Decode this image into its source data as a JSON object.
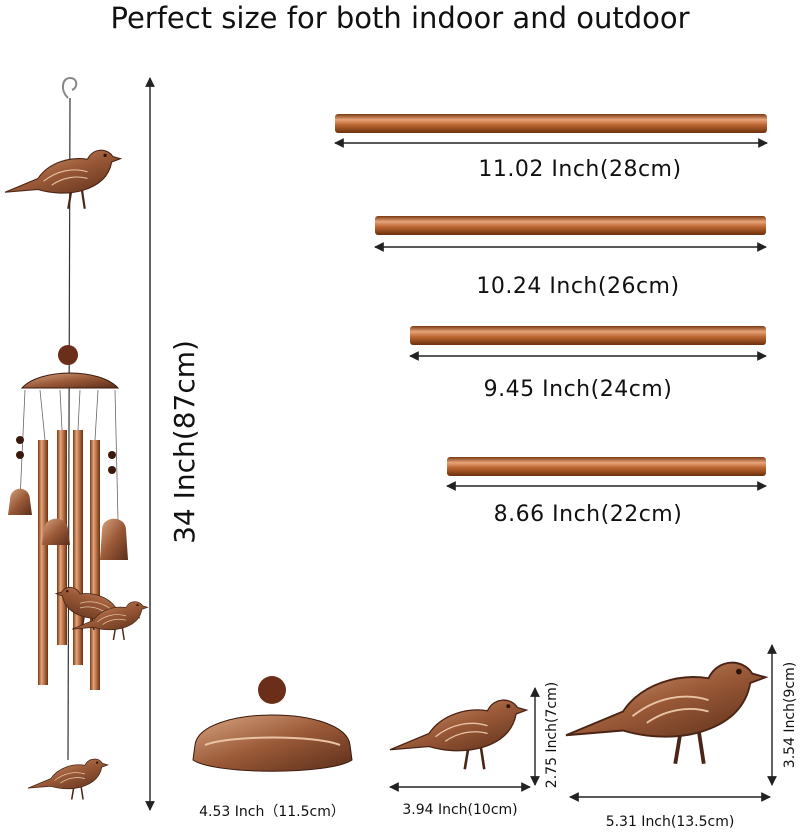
{
  "title": "Perfect size for both indoor and outdoor",
  "overall_height": "34 Inch(87cm)",
  "tubes": [
    "11.02 Inch(28cm)",
    "10.24 Inch(26cm)",
    "9.45 Inch(24cm)",
    "8.66 Inch(22cm)"
  ],
  "parts": {
    "cap_width": "4.53 Inch（11.5cm）",
    "small_bird_width": "3.94 Inch(10cm)",
    "small_bird_height": "2.75 Inch(7cm)",
    "large_bird_width": "5.31 Inch(13.5cm)",
    "large_bird_height": "3.54 Inch(9cm)"
  }
}
